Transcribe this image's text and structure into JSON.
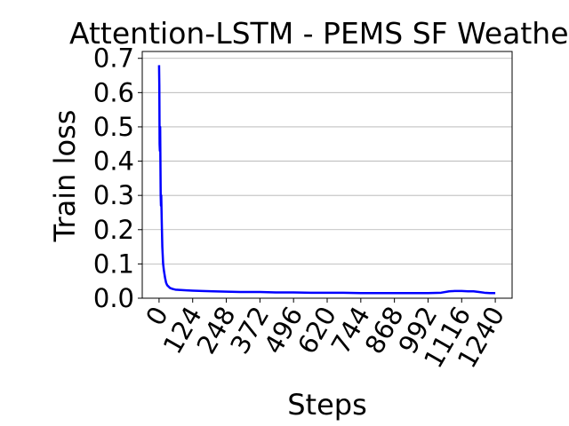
{
  "chart_data": {
    "type": "line",
    "title": "Attention-LSTM - PEMS SF Weather",
    "xlabel": "Steps",
    "ylabel": "Train loss",
    "x_ticks": [
      0,
      124,
      248,
      372,
      496,
      620,
      744,
      868,
      992,
      1116,
      1240
    ],
    "y_ticks": [
      0.0,
      0.1,
      0.2,
      0.3,
      0.4,
      0.5,
      0.6,
      0.7
    ],
    "y_tick_labels": [
      "0.0",
      "0.1",
      "0.2",
      "0.3",
      "0.4",
      "0.5",
      "0.6",
      "0.7"
    ],
    "xlim": [
      -62,
      1302
    ],
    "ylim": [
      0.0,
      0.72
    ],
    "grid": "horizontal",
    "line_color": "#0000ff",
    "series": [
      {
        "x": [
          0,
          1,
          2,
          3,
          4,
          5,
          6,
          7,
          8,
          10,
          12,
          15,
          18,
          22,
          26,
          30,
          40,
          50,
          60,
          80,
          100,
          124,
          160,
          200,
          248,
          300,
          372,
          430,
          496,
          560,
          620,
          680,
          744,
          800,
          868,
          930,
          992,
          1040,
          1070,
          1090,
          1116,
          1140,
          1160,
          1180,
          1200,
          1220,
          1240
        ],
        "values": [
          0.68,
          0.62,
          0.45,
          0.43,
          0.5,
          0.4,
          0.3,
          0.27,
          0.3,
          0.22,
          0.15,
          0.1,
          0.08,
          0.06,
          0.045,
          0.038,
          0.03,
          0.027,
          0.025,
          0.024,
          0.023,
          0.022,
          0.021,
          0.02,
          0.019,
          0.018,
          0.018,
          0.017,
          0.017,
          0.016,
          0.016,
          0.016,
          0.015,
          0.015,
          0.015,
          0.015,
          0.015,
          0.016,
          0.02,
          0.021,
          0.021,
          0.02,
          0.02,
          0.018,
          0.016,
          0.015,
          0.015
        ]
      }
    ]
  }
}
